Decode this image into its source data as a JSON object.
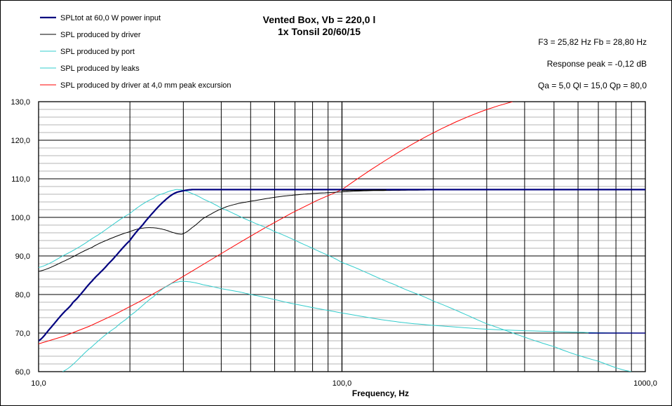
{
  "chart_data": {
    "type": "line",
    "title": "Vented Box, Vb = 220,0 l",
    "subtitle": "1x Tonsil 20/60/15",
    "xlabel": "Frequency, Hz",
    "ylabel": "",
    "xscale": "log",
    "xlim": [
      10,
      1000
    ],
    "ylim": [
      60,
      130
    ],
    "grid": true,
    "legend_position": "top-left",
    "xticks": [
      10,
      100,
      1000
    ],
    "xtick_labels": [
      "10,0",
      "100,0",
      "1000,0"
    ],
    "yticks": [
      60,
      70,
      80,
      90,
      100,
      110,
      120,
      130
    ],
    "ytick_labels": [
      "60,0",
      "70,0",
      "80,0",
      "90,0",
      "100,0",
      "110,0",
      "120,0",
      "130,0"
    ],
    "annotations": [
      "F3 = 25,82  Hz   Fb = 28,80  Hz",
      "Response peak = -0,12  dB",
      "Qa = 5,0   Ql = 15,0   Qp = 80,0"
    ],
    "series": [
      {
        "name": "SPLtot at 60,0 W power input",
        "color": "#00007f",
        "width": 2.2,
        "x": [
          10,
          11,
          12,
          13,
          15,
          17,
          20,
          22,
          24,
          26,
          28,
          30,
          32,
          35,
          40,
          60,
          100,
          200,
          500,
          1000
        ],
        "y": [
          68,
          71.5,
          75,
          78,
          83.5,
          88,
          94,
          98,
          101.5,
          104.3,
          106.2,
          106.9,
          107.2,
          107.2,
          107.2,
          107.2,
          107.2,
          107.2,
          107.2,
          107.2
        ]
      },
      {
        "name": "SPL produced by driver",
        "color": "#000000",
        "width": 1,
        "x": [
          10,
          12,
          15,
          17,
          20,
          22,
          24,
          26,
          28,
          29,
          30,
          32,
          35,
          40,
          45,
          50,
          60,
          70,
          80,
          100,
          120,
          150,
          200,
          500,
          1000
        ],
        "y": [
          86,
          88.5,
          92.2,
          94.3,
          96.3,
          97.2,
          97.3,
          96.8,
          96,
          95.7,
          95.8,
          97.3,
          99.8,
          102.2,
          103.5,
          104.2,
          105.2,
          105.8,
          106.2,
          106.6,
          106.9,
          107.0,
          107.1,
          107.2,
          107.2
        ]
      },
      {
        "name": "SPL produced by port",
        "color": "#33cccc",
        "width": 1,
        "x": [
          10,
          12,
          15,
          20,
          24,
          26,
          28,
          29,
          30,
          32,
          35,
          40,
          50,
          60,
          80,
          100,
          150,
          200,
          300,
          500,
          700,
          900
        ],
        "y": [
          87,
          90,
          94.5,
          101,
          105,
          106.3,
          107.1,
          107.2,
          107,
          106.2,
          104.7,
          102.4,
          99,
          96.3,
          92,
          88.3,
          82.5,
          78.3,
          72.4,
          66.5,
          62.7,
          60
        ]
      },
      {
        "name": "SPL produced by leaks",
        "color": "#33cccc",
        "width": 1,
        "x": [
          12,
          15,
          18,
          20,
          24,
          27,
          29,
          30,
          32,
          35,
          40,
          50,
          70,
          100,
          150,
          200,
          300,
          500,
          700,
          1000
        ],
        "y": [
          60,
          66.5,
          71.5,
          74.5,
          79.5,
          82.5,
          83.3,
          83.4,
          83.2,
          82.5,
          81.5,
          80,
          77.5,
          75.2,
          73,
          72,
          71,
          70.4,
          70.1,
          70
        ]
      },
      {
        "name": "SPL produced by driver at 4,0 mm peak excursion",
        "color": "#ff0000",
        "width": 1,
        "x": [
          10,
          100,
          365
        ],
        "y": [
          67.2,
          107.2,
          130
        ]
      }
    ]
  },
  "overlay_series": [
    {
      "color": "#000000",
      "x": [
        100,
        140
      ],
      "y": [
        107.0,
        107.1
      ]
    },
    {
      "color": "#00007f",
      "x": [
        650,
        1000
      ],
      "y": [
        70.0,
        70.0
      ]
    }
  ]
}
